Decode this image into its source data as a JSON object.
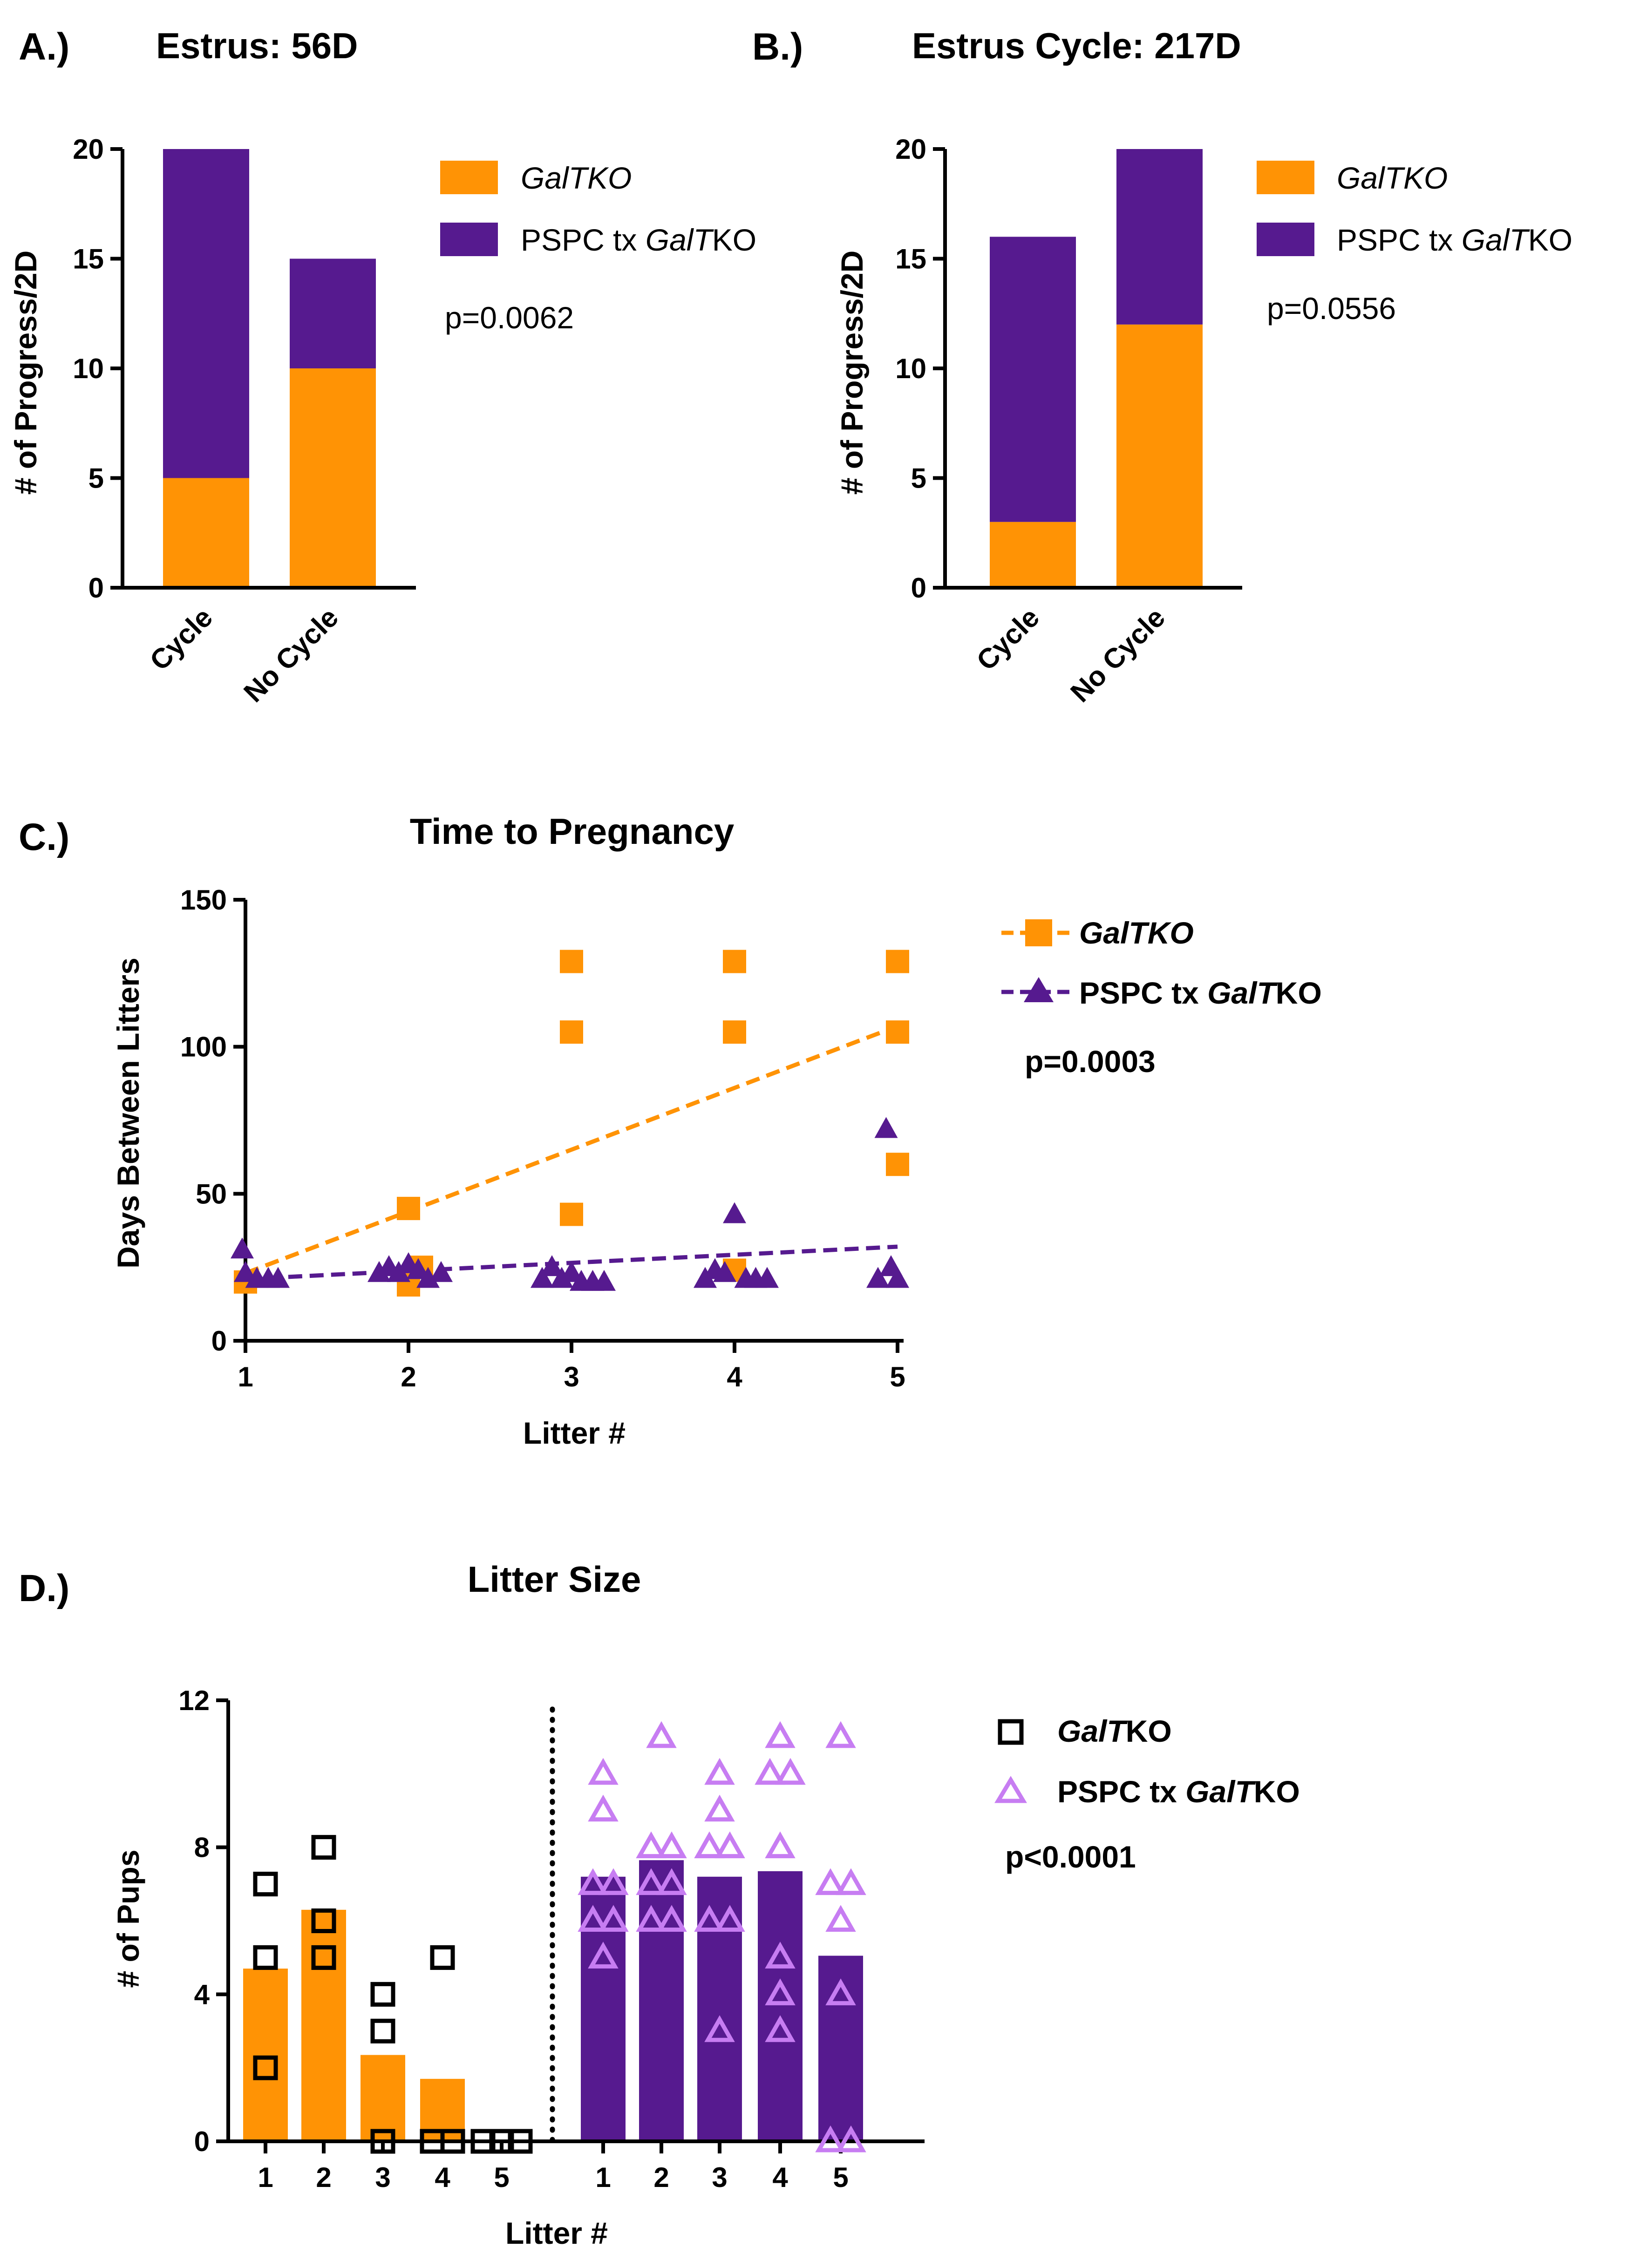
{
  "colors": {
    "orange": "#FF9305",
    "purple": "#561A8F",
    "light_purple": "#C77DF2",
    "black": "#000000"
  },
  "labels": {
    "panel_a": "A.)",
    "panel_b": "B.)",
    "panel_c": "C.)",
    "panel_d": "D.)"
  },
  "legend": {
    "galtko_italic": "GalTKO",
    "pspc_prefix": "PSPC tx ",
    "pspc_italic": "GalT",
    "pspc_suffix": "KO",
    "galtko_d_italic": "GalT",
    "galtko_d_suffix": "KO"
  },
  "chart_data": [
    {
      "id": "A",
      "type": "bar",
      "stacked": true,
      "title": "Estrus: 56D",
      "ylabel": "# of Progress/2D",
      "xlabel": "",
      "categories": [
        "Cycle",
        "No Cycle"
      ],
      "series": [
        {
          "name": "GalTKO",
          "color": "#FF9305",
          "values": [
            5,
            10
          ]
        },
        {
          "name": "PSPC tx GalTKO",
          "color": "#561A8F",
          "values": [
            15,
            5
          ]
        }
      ],
      "ylim": [
        0,
        20
      ],
      "yticks": [
        0,
        5,
        10,
        15,
        20
      ],
      "annotation": "p=0.0062"
    },
    {
      "id": "B",
      "type": "bar",
      "stacked": true,
      "title": "Estrus Cycle: 217D",
      "ylabel": "# of Progress/2D",
      "xlabel": "",
      "categories": [
        "Cycle",
        "No Cycle"
      ],
      "series": [
        {
          "name": "GalTKO",
          "color": "#FF9305",
          "values": [
            3,
            12
          ]
        },
        {
          "name": "PSPC tx GalTKO",
          "color": "#561A8F",
          "values": [
            13,
            8
          ]
        }
      ],
      "ylim": [
        0,
        20
      ],
      "yticks": [
        0,
        5,
        10,
        15,
        20
      ],
      "annotation": "p=0.0556"
    },
    {
      "id": "C",
      "type": "scatter",
      "title": "Time to Pregnancy",
      "xlabel": "Litter #",
      "ylabel": "Days Between Litters",
      "xlim": [
        1,
        5
      ],
      "ylim": [
        0,
        150
      ],
      "xticks": [
        1,
        2,
        3,
        4,
        5
      ],
      "yticks": [
        0,
        50,
        100,
        150
      ],
      "series": [
        {
          "name": "GalTKO",
          "color": "#FF9305",
          "marker": "square",
          "points": [
            [
              1,
              20
            ],
            [
              2,
              45
            ],
            [
              2,
              19
            ],
            [
              2.08,
              25
            ],
            [
              3,
              129
            ],
            [
              3,
              105
            ],
            [
              3,
              43
            ],
            [
              4,
              129
            ],
            [
              4,
              105
            ],
            [
              4,
              24
            ],
            [
              5,
              129
            ],
            [
              5,
              105
            ],
            [
              5,
              60
            ]
          ],
          "fit": [
            [
              1,
              23
            ],
            [
              5,
              107
            ]
          ]
        },
        {
          "name": "PSPC tx GalTKO",
          "color": "#561A8F",
          "marker": "triangle",
          "points": [
            [
              0.98,
              31
            ],
            [
              1,
              23
            ],
            [
              1.07,
              21
            ],
            [
              1.14,
              21
            ],
            [
              1.2,
              21
            ],
            [
              1.82,
              23
            ],
            [
              1.88,
              25
            ],
            [
              1.94,
              23
            ],
            [
              2,
              26
            ],
            [
              2.06,
              24
            ],
            [
              2.12,
              21
            ],
            [
              2.2,
              23
            ],
            [
              2.82,
              21
            ],
            [
              2.88,
              25
            ],
            [
              2.94,
              21
            ],
            [
              3,
              23
            ],
            [
              3.06,
              20
            ],
            [
              3.13,
              20
            ],
            [
              3.2,
              20
            ],
            [
              3.82,
              21
            ],
            [
              3.88,
              24
            ],
            [
              3.94,
              23
            ],
            [
              4,
              43
            ],
            [
              4.07,
              21
            ],
            [
              4.13,
              21
            ],
            [
              4.2,
              21
            ],
            [
              4.88,
              21
            ],
            [
              4.93,
              72
            ],
            [
              4.96,
              25
            ],
            [
              5,
              21
            ]
          ],
          "fit": [
            [
              1,
              21
            ],
            [
              5,
              32
            ]
          ]
        }
      ],
      "annotation": "p=0.0003"
    },
    {
      "id": "D",
      "type": "bar",
      "title": "Litter Size",
      "xlabel": "Litter #",
      "ylabel": "# of Pups",
      "ylim": [
        0,
        12
      ],
      "yticks": [
        0,
        4,
        8,
        12
      ],
      "groups": [
        {
          "name": "GalTKO",
          "bar_color": "#FF9305",
          "marker": "square-open",
          "marker_color": "#000000",
          "categories": [
            "1",
            "2",
            "3",
            "4",
            "5"
          ],
          "means": [
            4.7,
            6.3,
            2.35,
            1.7,
            0
          ],
          "points": [
            [
              7,
              5,
              2
            ],
            [
              8,
              6,
              5
            ],
            [
              4,
              3,
              0
            ],
            [
              5,
              0,
              0
            ],
            [
              0,
              0,
              0
            ]
          ]
        },
        {
          "name": "PSPC tx GalTKO",
          "bar_color": "#561A8F",
          "marker": "triangle-open",
          "marker_color": "#C77DF2",
          "categories": [
            "1",
            "2",
            "3",
            "4",
            "5"
          ],
          "means": [
            7.2,
            7.65,
            7.2,
            7.35,
            5.05
          ],
          "points": [
            [
              10,
              9,
              7,
              7,
              6,
              6,
              5
            ],
            [
              11,
              8,
              8,
              7,
              7,
              6,
              6
            ],
            [
              10,
              9,
              8,
              8,
              6,
              6,
              3
            ],
            [
              11,
              10,
              10,
              8,
              5,
              4,
              3
            ],
            [
              11,
              7,
              7,
              6,
              4,
              0,
              0
            ]
          ]
        }
      ],
      "annotation": "p<0.0001"
    }
  ]
}
